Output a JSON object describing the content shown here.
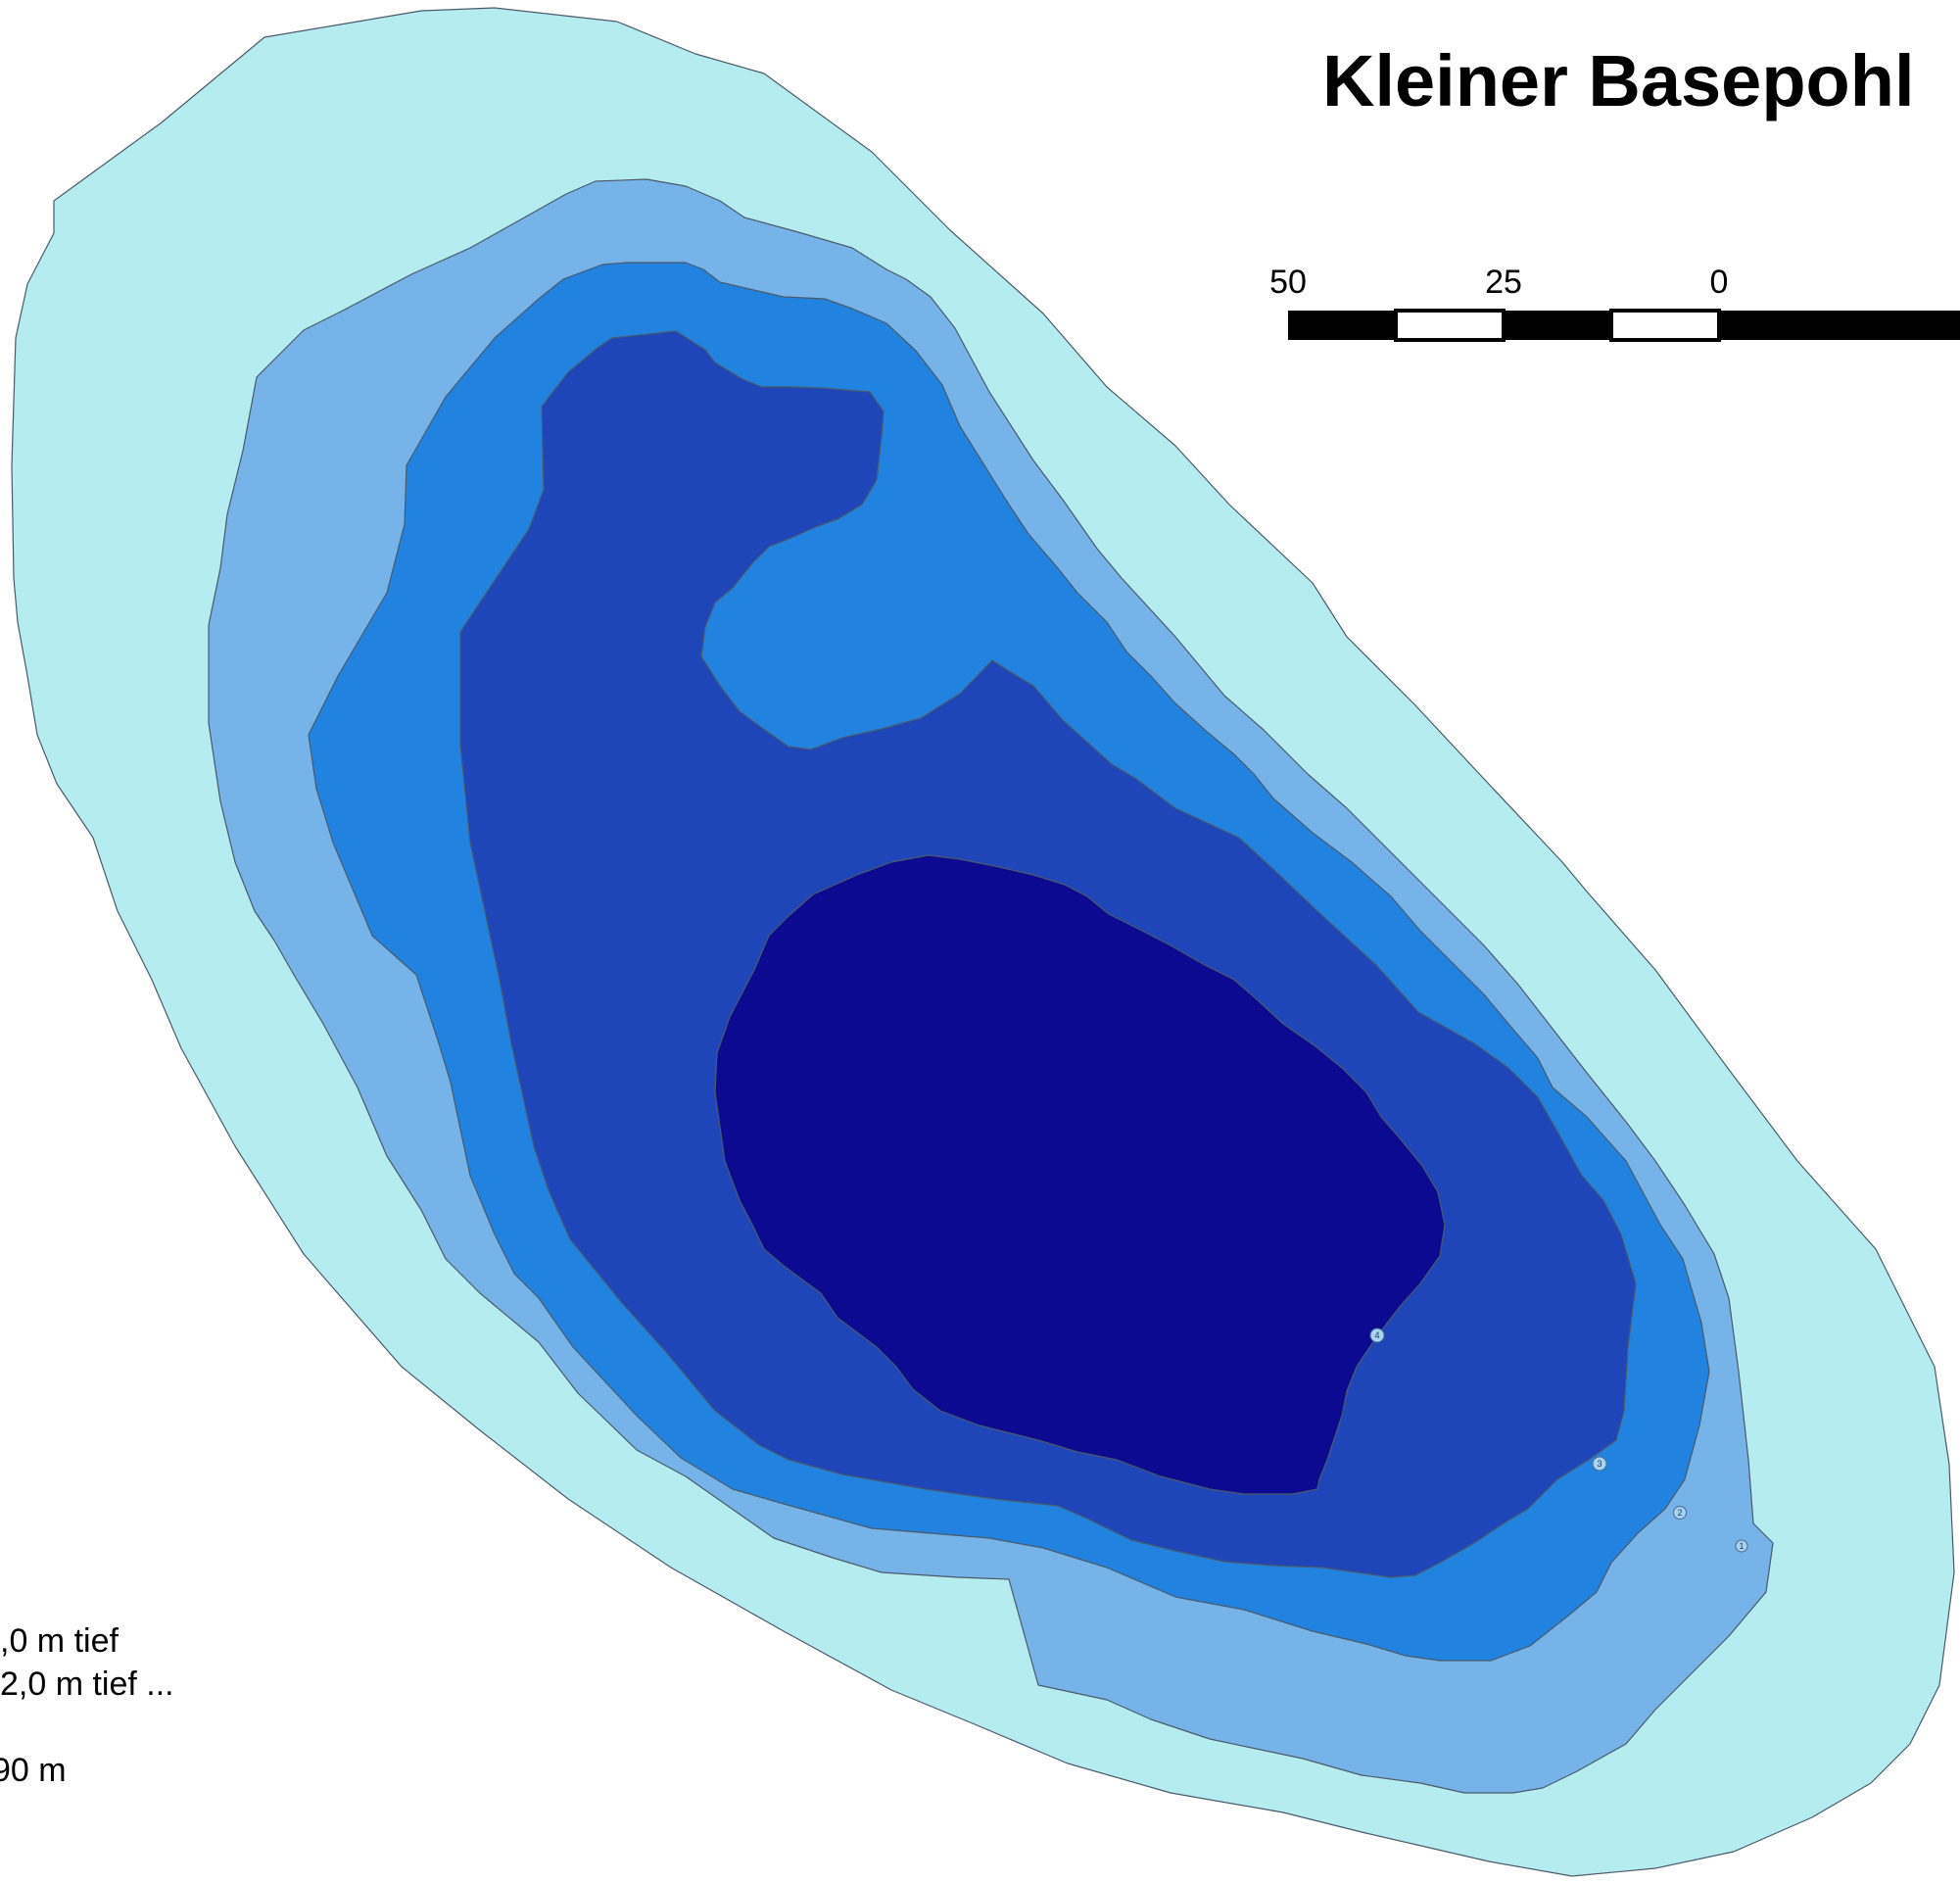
{
  "map": {
    "title": "Kleiner Basepohl",
    "scale_bar": {
      "labels": [
        "50",
        "25",
        "0"
      ],
      "colors": {
        "dark": "#000000",
        "light": "#ffffff"
      }
    },
    "depth_zones": [
      {
        "name": "zone-1",
        "color": "#b5ecef"
      },
      {
        "name": "zone-2",
        "color": "#76b3e8"
      },
      {
        "name": "zone-3",
        "color": "#2183df"
      },
      {
        "name": "zone-4",
        "color": "#1f46b8"
      },
      {
        "name": "zone-5",
        "color": "#0b0a90"
      }
    ],
    "depth_markers": [
      {
        "label": "1",
        "color": "#a8d4f0"
      },
      {
        "label": "2",
        "color": "#a8d4f0"
      },
      {
        "label": "3",
        "color": "#a8d4f0"
      },
      {
        "label": "4",
        "color": "#a8d4f0"
      }
    ],
    "legend": {
      "lines": [
        ",0 m tief",
        "2,0 m tief ...",
        "90 m"
      ]
    }
  }
}
